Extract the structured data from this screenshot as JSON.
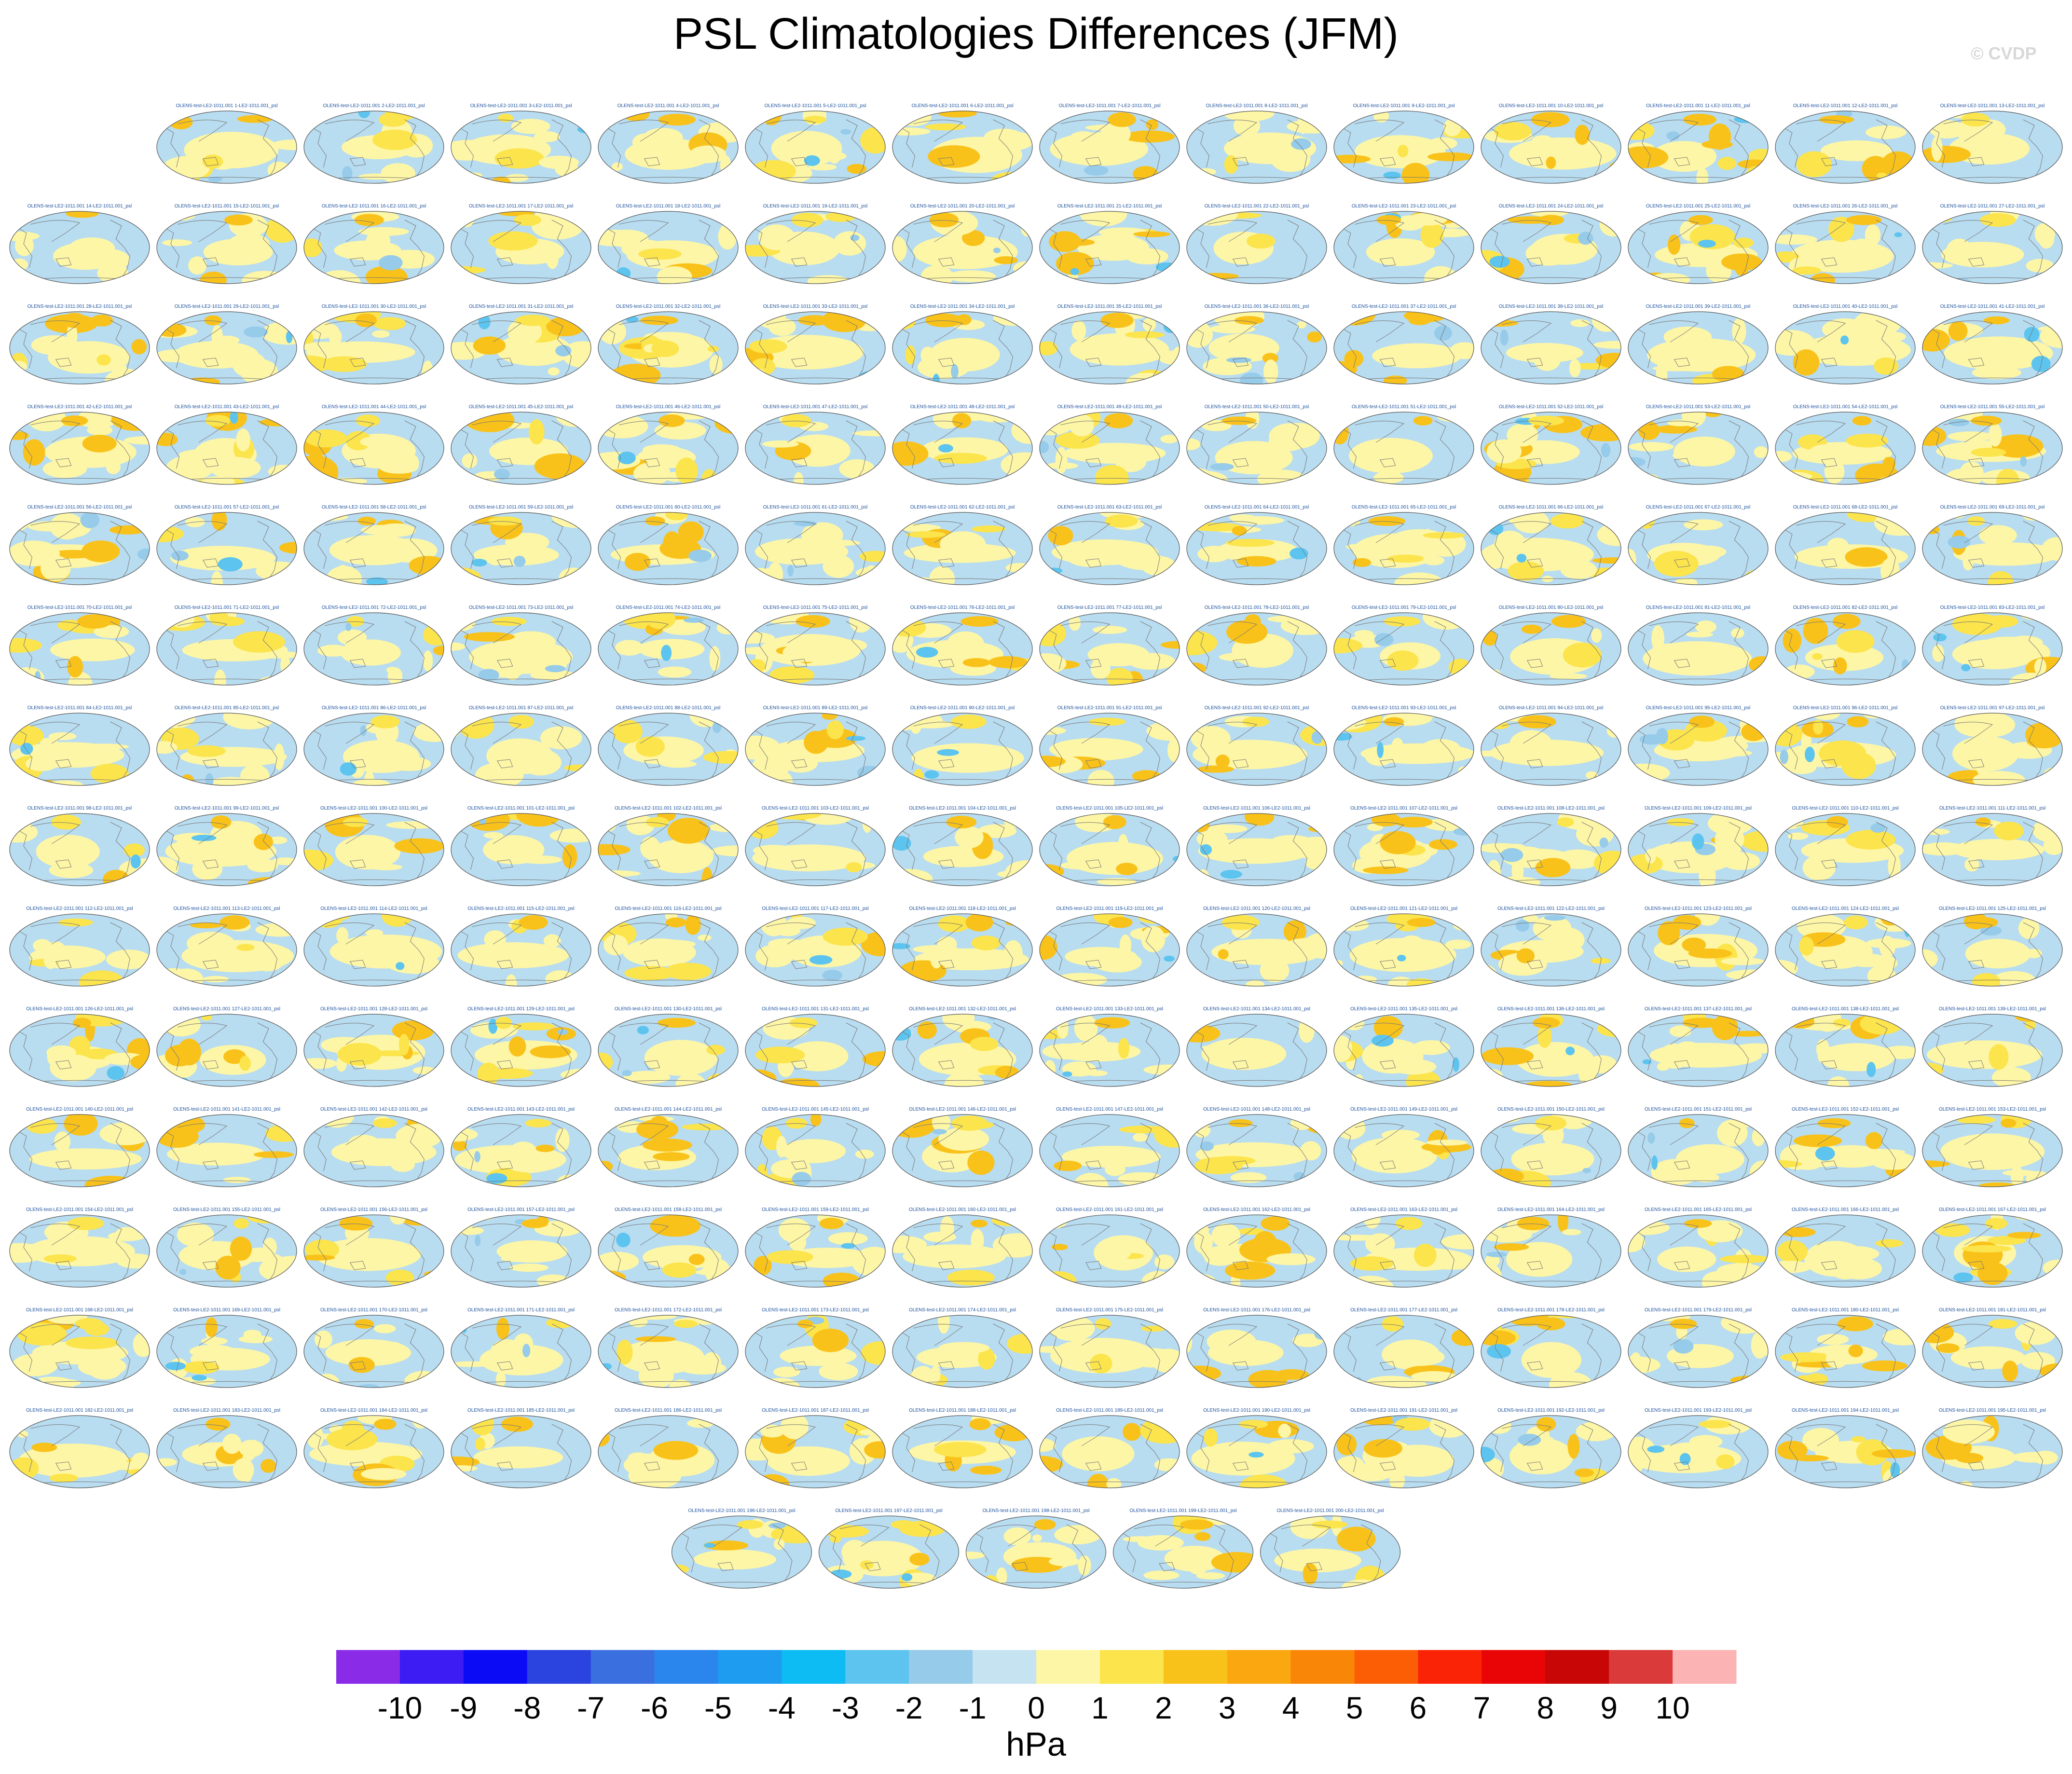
{
  "title": "PSL Climatologies Differences (JFM)",
  "credit": "© CVDP",
  "map": {
    "projection": "robinson",
    "panel_count": 200,
    "panel_label_template": "OLENS-test-LE2-1011.001 {n}-LE2-1011.001_psl",
    "colors": {
      "ocean_background": "#b8dcf0",
      "coastline": "#777777",
      "panel_label": "#1a4f9c"
    }
  },
  "colorbar": {
    "units": "hPa",
    "tick_labels": [
      "-10",
      "-9",
      "-8",
      "-7",
      "-6",
      "-5",
      "-4",
      "-3",
      "-2",
      "-1",
      "0",
      "1",
      "2",
      "3",
      "4",
      "5",
      "6",
      "7",
      "8",
      "9",
      "10"
    ],
    "colors": [
      "#8a2be8",
      "#3c1cf2",
      "#0b0cf5",
      "#2b44e0",
      "#3a6fe0",
      "#2a86ec",
      "#1e9cf0",
      "#0cbcf2",
      "#5cc4ef",
      "#96cbea",
      "#c6e3f2",
      "#fdf6a6",
      "#fce44c",
      "#f9c21a",
      "#fba70f",
      "#fa8608",
      "#fb5e05",
      "#fa2305",
      "#e90505",
      "#c80606",
      "#da3a3a",
      "#fcb3b3"
    ]
  }
}
